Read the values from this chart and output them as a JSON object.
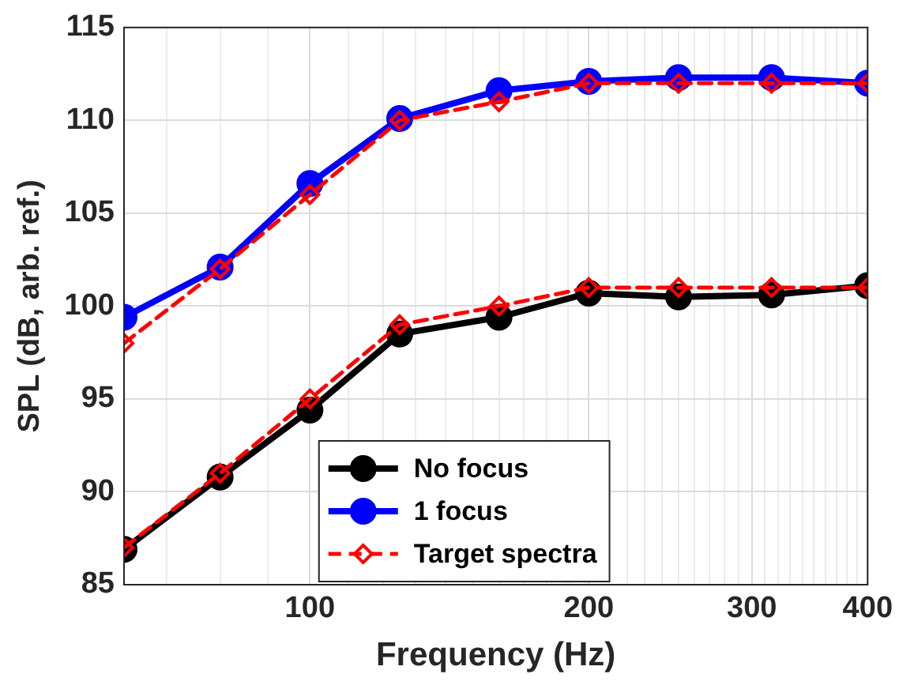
{
  "chart_data": {
    "type": "line",
    "xlabel": "Frequency (Hz)",
    "ylabel": "SPL (dB, arb. ref.)",
    "log": "x",
    "x": [
      63,
      80,
      100,
      125,
      160,
      200,
      250,
      315,
      400
    ],
    "xlim": [
      63,
      400
    ],
    "xticks": [
      {
        "value": 70,
        "label": null
      },
      {
        "value": 80,
        "label": null
      },
      {
        "value": 90,
        "label": null
      },
      100,
      {
        "value": 110,
        "label": null
      },
      {
        "value": 120,
        "label": null
      },
      {
        "value": 130,
        "label": null
      },
      {
        "value": 140,
        "label": null
      },
      {
        "value": 150,
        "label": null
      },
      {
        "value": 160,
        "label": null
      },
      {
        "value": 170,
        "label": null
      },
      {
        "value": 180,
        "label": null
      },
      {
        "value": 190,
        "label": null
      },
      200,
      {
        "value": 210,
        "label": null
      },
      {
        "value": 220,
        "label": null
      },
      {
        "value": 230,
        "label": null
      },
      {
        "value": 240,
        "label": null
      },
      {
        "value": 250,
        "label": null
      },
      {
        "value": 260,
        "label": null
      },
      {
        "value": 270,
        "label": null
      },
      {
        "value": 280,
        "label": null
      },
      {
        "value": 290,
        "label": null
      },
      300,
      {
        "value": 310,
        "label": null
      },
      {
        "value": 320,
        "label": null
      },
      {
        "value": 330,
        "label": null
      },
      {
        "value": 340,
        "label": null
      },
      {
        "value": 350,
        "label": null
      },
      {
        "value": 360,
        "label": null
      },
      {
        "value": 370,
        "label": null
      },
      {
        "value": 380,
        "label": null
      },
      {
        "value": 390,
        "label": null
      },
      400
    ],
    "ylim": [
      85,
      115
    ],
    "yticks": [
      85,
      90,
      95,
      100,
      105,
      110,
      115
    ],
    "grid": true,
    "legend": "bottom",
    "series": [
      {
        "name": "No focus",
        "color": "#000000",
        "marker": "circle",
        "line_style": "solid",
        "values": [
          86.9,
          90.8,
          94.4,
          98.5,
          99.4,
          100.7,
          100.5,
          100.6,
          101.1
        ]
      },
      {
        "name": "1 focus",
        "color": "#0000ff",
        "marker": "circle",
        "line_style": "solid",
        "values": [
          99.4,
          102.1,
          106.6,
          110.1,
          111.6,
          112.1,
          112.3,
          112.3,
          112.0
        ]
      },
      {
        "name": "Target spectra",
        "color": "#ff0000",
        "marker": "diamond",
        "line_style": "dashed",
        "values": [
          87,
          91,
          95,
          99,
          100,
          101,
          101,
          101,
          101
        ]
      },
      {
        "color": "#ff0000",
        "marker": "diamond",
        "line_style": "dashed",
        "values": [
          98,
          102,
          106,
          110,
          111,
          112,
          112,
          112,
          112
        ]
      }
    ]
  }
}
